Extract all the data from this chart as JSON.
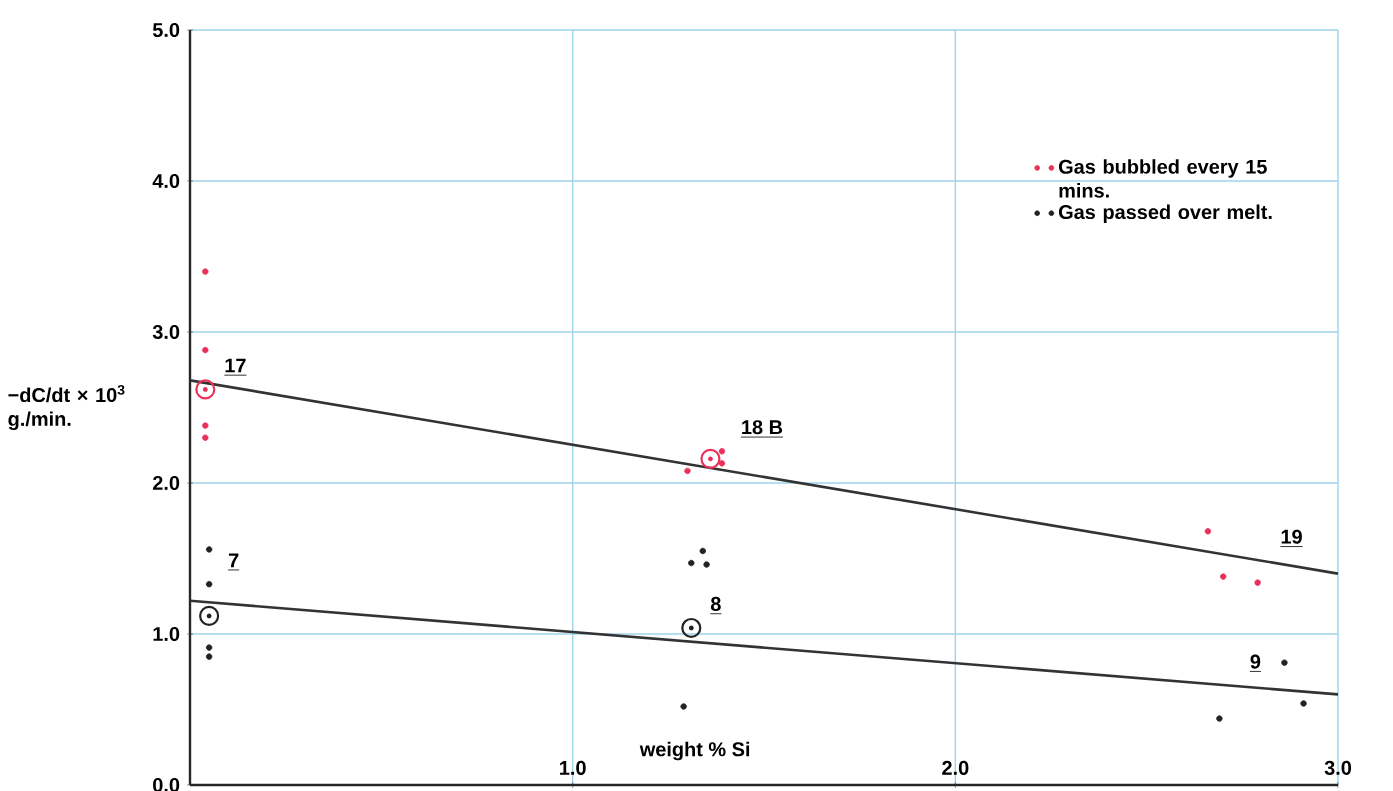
{
  "chart_data": {
    "type": "scatter",
    "xlabel": "weight % Si",
    "ylabel": "−dC/dt × 10$^{3}$ g./min.",
    "xlim": [
      0,
      3
    ],
    "ylim": [
      0,
      5
    ],
    "xticks": [
      {
        "value": 1,
        "label": "1.0"
      },
      {
        "value": 2,
        "label": "2.0"
      },
      {
        "value": 3,
        "label": "3.0"
      }
    ],
    "yticks": [
      {
        "value": 0,
        "label": "0.0"
      },
      {
        "value": 1,
        "label": "1.0"
      },
      {
        "value": 2,
        "label": "2.0"
      },
      {
        "value": 3,
        "label": "3.0"
      },
      {
        "value": 4,
        "label": "4.0"
      },
      {
        "value": 5,
        "label": "5.0"
      }
    ],
    "grid": true,
    "legend": "top right",
    "series": [
      {
        "name": "Gas bubbled every 15 mins.",
        "color": "#e8305a",
        "x": [
          0.04,
          0.04,
          0.04,
          0.04,
          1.3,
          1.39,
          1.39,
          2.66,
          2.7,
          2.79
        ],
        "values": [
          3.4,
          2.88,
          2.38,
          2.3,
          2.08,
          2.21,
          2.13,
          1.68,
          1.38,
          1.34
        ]
      },
      {
        "name": "Gas passed over melt.",
        "color": "#222222",
        "x": [
          0.05,
          0.05,
          0.05,
          0.05,
          1.34,
          1.31,
          1.35,
          1.29,
          2.86,
          2.91,
          2.69
        ],
        "values": [
          1.56,
          1.33,
          0.91,
          0.85,
          1.55,
          1.47,
          1.46,
          0.52,
          0.81,
          0.54,
          0.44
        ]
      },
      {
        "color": "#e8305a",
        "marker": "circle",
        "x": [
          0.04,
          1.36
        ],
        "values": [
          2.62,
          2.16
        ]
      },
      {
        "color": "#222222",
        "marker": "circle",
        "x": [
          0.05,
          1.31
        ],
        "values": [
          1.12,
          1.04
        ]
      },
      {
        "type": "line",
        "color": "#333333",
        "x": [
          0,
          3
        ],
        "values": [
          2.68,
          1.4
        ]
      },
      {
        "type": "line",
        "color": "#333333",
        "x": [
          0,
          3
        ],
        "values": [
          1.22,
          0.6
        ]
      }
    ],
    "annotations": [
      {
        "text": "17",
        "x": 0.04,
        "y": 2.62
      },
      {
        "text": "7",
        "x": 0.05,
        "y": 1.33
      },
      {
        "text": "18 B",
        "x": 1.39,
        "y": 2.21
      },
      {
        "text": "8",
        "x": 1.31,
        "y": 1.04
      },
      {
        "text": "19",
        "x": 2.8,
        "y": 1.485
      },
      {
        "text": "9",
        "x": 2.72,
        "y": 0.658
      }
    ]
  }
}
